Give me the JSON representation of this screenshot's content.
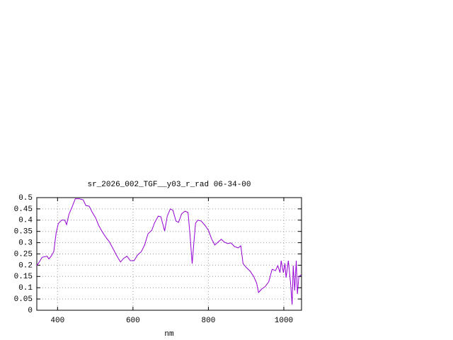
{
  "chart_data": {
    "type": "line",
    "title": "sr_2026_002_TGF__y03_r_rad 06-34-00",
    "x_label": "nm",
    "xlim": [
      345,
      1047
    ],
    "xticks": [
      400,
      600,
      800,
      1000
    ],
    "ylim": [
      0,
      0.5
    ],
    "yticks": [
      0,
      0.05,
      0.1,
      0.15,
      0.2,
      0.25,
      0.3,
      0.35,
      0.4,
      0.45,
      0.5
    ],
    "grid": true,
    "x": [
      345,
      350,
      359,
      372,
      377,
      383,
      390,
      396,
      402,
      411,
      419,
      424,
      430,
      439,
      447,
      458,
      468,
      475,
      484,
      492,
      501,
      509,
      518,
      528,
      537,
      546,
      556,
      567,
      575,
      584,
      593,
      603,
      612,
      622,
      631,
      640,
      650,
      657,
      667,
      674,
      684,
      691,
      699,
      706,
      714,
      721,
      729,
      738,
      746,
      751,
      757,
      761,
      766,
      772,
      781,
      791,
      800,
      809,
      817,
      824,
      834,
      843,
      851,
      860,
      869,
      879,
      886,
      892,
      901,
      911,
      920,
      928,
      933,
      941,
      950,
      960,
      969,
      978,
      984,
      990,
      993,
      999,
      1003,
      1006,
      1012,
      1018,
      1022,
      1025,
      1029,
      1033,
      1036,
      1040,
      1046
    ],
    "series": [
      {
        "name": "sr_2026_002_TGF__y03_r_rad",
        "color": "#9400d3",
        "values": [
          0.198,
          0.21,
          0.235,
          0.24,
          0.228,
          0.24,
          0.26,
          0.34,
          0.385,
          0.4,
          0.4,
          0.38,
          0.425,
          0.46,
          0.495,
          0.495,
          0.49,
          0.465,
          0.462,
          0.435,
          0.41,
          0.377,
          0.35,
          0.324,
          0.305,
          0.277,
          0.245,
          0.214,
          0.23,
          0.24,
          0.22,
          0.22,
          0.245,
          0.26,
          0.29,
          0.34,
          0.355,
          0.387,
          0.418,
          0.415,
          0.352,
          0.418,
          0.45,
          0.444,
          0.396,
          0.39,
          0.428,
          0.44,
          0.434,
          0.34,
          0.207,
          0.29,
          0.387,
          0.4,
          0.396,
          0.377,
          0.355,
          0.315,
          0.29,
          0.3,
          0.315,
          0.302,
          0.296,
          0.299,
          0.283,
          0.277,
          0.286,
          0.207,
          0.189,
          0.173,
          0.15,
          0.12,
          0.079,
          0.094,
          0.104,
          0.126,
          0.182,
          0.176,
          0.198,
          0.167,
          0.22,
          0.167,
          0.208,
          0.145,
          0.22,
          0.12,
          0.025,
          0.198,
          0.088,
          0.22,
          0.072,
          0.15,
          0.157
        ]
      }
    ]
  }
}
